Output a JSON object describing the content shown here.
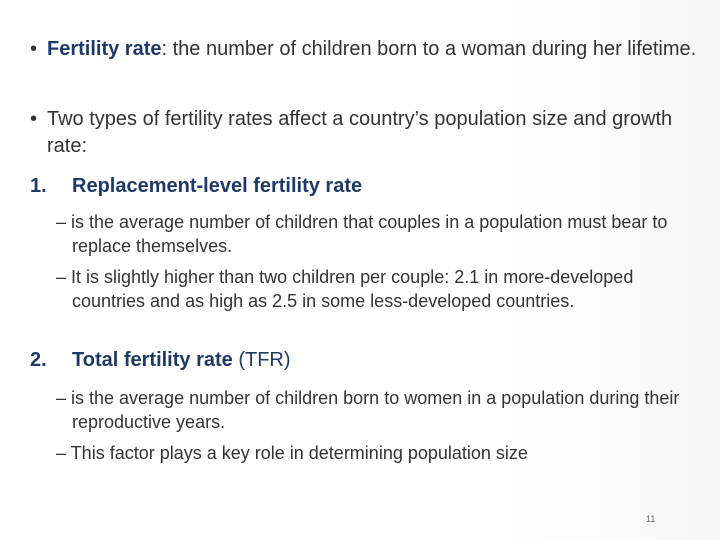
{
  "intro_bullets": [
    {
      "marker": "•",
      "term": "Fertility rate",
      "text": ": the number of children born to a woman during her lifetime."
    },
    {
      "marker": "•",
      "text": "Two types of fertility rates affect a country’s population size and growth rate:"
    }
  ],
  "items": [
    {
      "number": "1.",
      "title": "Replacement-level fertility rate",
      "points": [
        "– is the average number of children that couples in a population must bear to replace themselves.",
        "– It is slightly higher than two children per couple: 2.1 in more-developed countries and as high as 2.5 in some less-developed countries."
      ]
    },
    {
      "number": "2.",
      "title": "Total fertility rate",
      "title_suffix": " (TFR)",
      "points": [
        "– is the average number of children born to women in a population during their reproductive years.",
        "– This factor plays a key role in determining population size"
      ]
    }
  ],
  "page_number": "11",
  "colors": {
    "heading": "#1f3a64",
    "body_text": "#333333"
  }
}
